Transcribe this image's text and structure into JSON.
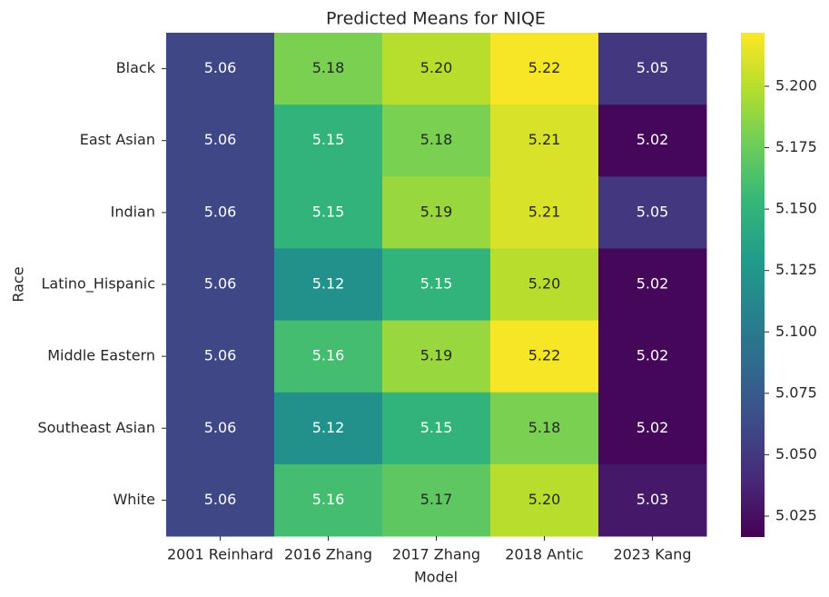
{
  "chart_data": {
    "type": "heatmap",
    "title": "Predicted Means for NIQE",
    "xlabel": "Model",
    "ylabel": "Race",
    "x": [
      "2001 Reinhard",
      "2016 Zhang",
      "2017 Zhang",
      "2018 Antic",
      "2023 Kang"
    ],
    "y": [
      "Black",
      "East Asian",
      "Indian",
      "Latino_Hispanic",
      "Middle Eastern",
      "Southeast Asian",
      "White"
    ],
    "values": [
      [
        5.06,
        5.18,
        5.2,
        5.22,
        5.05
      ],
      [
        5.06,
        5.15,
        5.18,
        5.21,
        5.02
      ],
      [
        5.06,
        5.15,
        5.19,
        5.21,
        5.05
      ],
      [
        5.06,
        5.12,
        5.15,
        5.2,
        5.02
      ],
      [
        5.06,
        5.16,
        5.19,
        5.22,
        5.02
      ],
      [
        5.06,
        5.12,
        5.15,
        5.18,
        5.02
      ],
      [
        5.06,
        5.16,
        5.17,
        5.2,
        5.03
      ]
    ],
    "value_labels": [
      [
        "5.06",
        "5.18",
        "5.20",
        "5.22",
        "5.05"
      ],
      [
        "5.06",
        "5.15",
        "5.18",
        "5.21",
        "5.02"
      ],
      [
        "5.06",
        "5.15",
        "5.19",
        "5.21",
        "5.05"
      ],
      [
        "5.06",
        "5.12",
        "5.15",
        "5.20",
        "5.02"
      ],
      [
        "5.06",
        "5.16",
        "5.19",
        "5.22",
        "5.02"
      ],
      [
        "5.06",
        "5.12",
        "5.15",
        "5.18",
        "5.02"
      ],
      [
        "5.06",
        "5.16",
        "5.17",
        "5.20",
        "5.03"
      ]
    ],
    "cmap": "viridis",
    "clim": [
      5.0165,
      5.2218
    ],
    "cticks": [
      5.025,
      {
        "value": 5.05,
        "label": "5.050"
      },
      5.075,
      {
        "value": 5.1,
        "label": "5.100"
      },
      5.125,
      {
        "value": 5.15,
        "label": "5.150"
      },
      5.175,
      {
        "value": 5.2,
        "label": "5.200"
      }
    ]
  }
}
